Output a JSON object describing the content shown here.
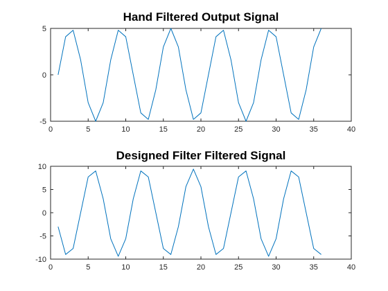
{
  "figure": {
    "background": "#ffffff",
    "line_color": "#0072BD",
    "axis_color": "#262626"
  },
  "chart_data": [
    {
      "type": "line",
      "title": "Hand Filtered Output Signal",
      "xlabel": "",
      "ylabel": "",
      "xlim": [
        0,
        40
      ],
      "ylim": [
        -5,
        5
      ],
      "xticks": [
        0,
        5,
        10,
        15,
        20,
        25,
        30,
        35,
        40
      ],
      "yticks": [
        -5,
        0,
        5
      ],
      "grid": false,
      "x": [
        1,
        2,
        3,
        4,
        5,
        6,
        7,
        8,
        9,
        10,
        11,
        12,
        13,
        14,
        15,
        16,
        17,
        18,
        19,
        20,
        21,
        22,
        23,
        24,
        25,
        26,
        27,
        28,
        29,
        30,
        31,
        32,
        33,
        34,
        35,
        36
      ],
      "series": [
        {
          "values": [
            0,
            4.1,
            4.8,
            1.6,
            -3.0,
            -5.0,
            -3.0,
            1.6,
            4.8,
            4.1,
            0,
            -4.1,
            -4.8,
            -1.6,
            3.0,
            5.0,
            3.0,
            -1.6,
            -4.8,
            -4.1,
            0,
            4.1,
            4.8,
            1.6,
            -3.0,
            -5.0,
            -3.0,
            1.6,
            4.8,
            4.1,
            0,
            -4.1,
            -4.8,
            -1.6,
            3.0,
            5.0
          ]
        }
      ]
    },
    {
      "type": "line",
      "title": "Designed Filter Filtered Signal",
      "xlabel": "",
      "ylabel": "",
      "xlim": [
        0,
        40
      ],
      "ylim": [
        -10,
        10
      ],
      "xticks": [
        0,
        5,
        10,
        15,
        20,
        25,
        30,
        35,
        40
      ],
      "yticks": [
        -10,
        -5,
        0,
        5,
        10
      ],
      "grid": false,
      "x": [
        1,
        2,
        3,
        4,
        5,
        6,
        7,
        8,
        9,
        10,
        11,
        12,
        13,
        14,
        15,
        16,
        17,
        18,
        19,
        20,
        21,
        22,
        23,
        24,
        25,
        26,
        27,
        28,
        29,
        30,
        31,
        32,
        33,
        34,
        35,
        36
      ],
      "series": [
        {
          "values": [
            -3.0,
            -9.0,
            -7.7,
            0,
            7.7,
            9.0,
            3.0,
            -5.6,
            -9.4,
            -5.6,
            3.0,
            9.0,
            7.7,
            0,
            -7.7,
            -9.0,
            -3.0,
            5.6,
            9.4,
            5.6,
            -3.0,
            -9.0,
            -7.7,
            0,
            7.7,
            9.0,
            3.0,
            -5.6,
            -9.4,
            -5.6,
            3.0,
            9.0,
            7.7,
            0,
            -7.7,
            -9.0
          ]
        }
      ]
    }
  ]
}
